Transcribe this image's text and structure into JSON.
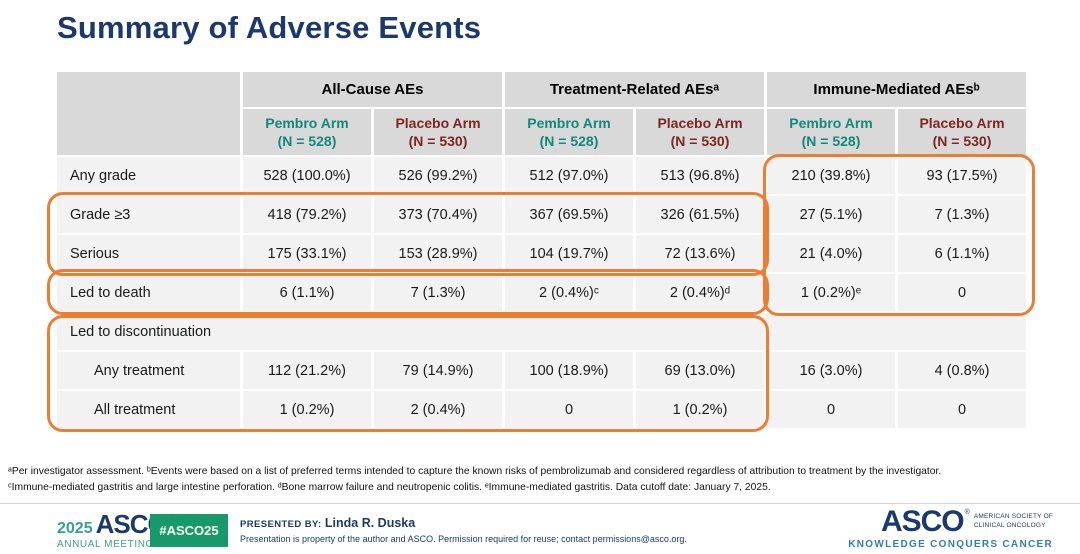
{
  "slide": {
    "title": "Summary of Adverse Events"
  },
  "table": {
    "groups": [
      {
        "label": "All-Cause AEs"
      },
      {
        "label": "Treatment-Related AEsᵃ"
      },
      {
        "label": "Immune-Mediated AEsᵇ"
      }
    ],
    "arms": [
      {
        "name": "Pembro Arm",
        "n": "(N = 528)",
        "color": "#11897B"
      },
      {
        "name": "Placebo Arm",
        "n": "(N = 530)",
        "color": "#7E2620"
      },
      {
        "name": "Pembro Arm",
        "n": "(N = 528)",
        "color": "#11897B"
      },
      {
        "name": "Placebo Arm",
        "n": "(N = 530)",
        "color": "#7E2620"
      },
      {
        "name": "Pembro Arm",
        "n": "(N = 528)",
        "color": "#11897B"
      },
      {
        "name": "Placebo Arm",
        "n": "(N = 530)",
        "color": "#7E2620"
      }
    ],
    "rows": [
      {
        "label": "Any grade",
        "cells": [
          "528 (100.0%)",
          "526 (99.2%)",
          "512 (97.0%)",
          "513 (96.8%)",
          "210 (39.8%)",
          "93 (17.5%)"
        ]
      },
      {
        "label": "Grade ≥3",
        "cells": [
          "418 (79.2%)",
          "373 (70.4%)",
          "367 (69.5%)",
          "326 (61.5%)",
          "27 (5.1%)",
          "7 (1.3%)"
        ]
      },
      {
        "label": "Serious",
        "cells": [
          "175 (33.1%)",
          "153 (28.9%)",
          "104 (19.7%)",
          "72 (13.6%)",
          "21 (4.0%)",
          "6 (1.1%)"
        ]
      },
      {
        "label": "Led to death",
        "cells": [
          "6 (1.1%)",
          "7 (1.3%)",
          "2 (0.4%)ᶜ",
          "2 (0.4%)ᵈ",
          "1 (0.2%)ᵉ",
          "0"
        ]
      },
      {
        "label": "Led to discontinuation",
        "cells": []
      },
      {
        "label": "Any treatment",
        "cells": [
          "112 (21.2%)",
          "79 (14.9%)",
          "100 (18.9%)",
          "69 (13.0%)",
          "16 (3.0%)",
          "4 (0.8%)"
        ]
      },
      {
        "label": "All treatment",
        "cells": [
          "1 (0.2%)",
          "2 (0.4%)",
          "0",
          "1 (0.2%)",
          "0",
          "0"
        ]
      }
    ]
  },
  "highlights": {
    "color": "#ED7D31",
    "regions": [
      "grade3-and-serious-rows-allcause-treatmentrelated",
      "led-to-death-row-allcause-treatmentrelated",
      "immune-mediated-columns-any-grade-to-led-to-death",
      "led-to-discontinuation-rows-allcause-treatmentrelated"
    ]
  },
  "footnotes": {
    "line1": "ᵃPer investigator assessment. ᵇEvents were based on a list of preferred terms intended to capture the known risks of pembrolizumab and considered regardless of attribution to treatment by the investigator.",
    "line2": "ᶜImmune-mediated gastritis and large intestine perforation. ᵈBone marrow failure and neutropenic colitis. ᵉImmune-mediated gastritis.  Data cutoff date: January 7, 2025."
  },
  "footer": {
    "meeting": {
      "year": "2025",
      "org": "ASCO",
      "reg": "®",
      "meeting_name": "ANNUAL MEETING"
    },
    "hashtag": "#ASCO25",
    "presented_by_label": "PRESENTED BY:",
    "presenter": "Linda R. Duska",
    "disclaimer": "Presentation is property of the author and ASCO. Permission required for reuse; contact permissions@asco.org.",
    "asco_logo": {
      "org": "ASCO",
      "reg": "®",
      "org_full_line1": "AMERICAN SOCIETY OF",
      "org_full_line2": "CLINICAL ONCOLOGY",
      "tagline": "KNOWLEDGE CONQUERS CANCER"
    }
  },
  "colors": {
    "title_navy": "#1B3A6B",
    "pembro_teal": "#11897B",
    "placebo_maroon": "#7E2620",
    "header_gray": "#D9D9D9",
    "row_gray": "#F2F2F2",
    "highlight_orange": "#ED7D31",
    "hashtag_green": "#17996B",
    "tagline_blue": "#2E7FB0"
  }
}
